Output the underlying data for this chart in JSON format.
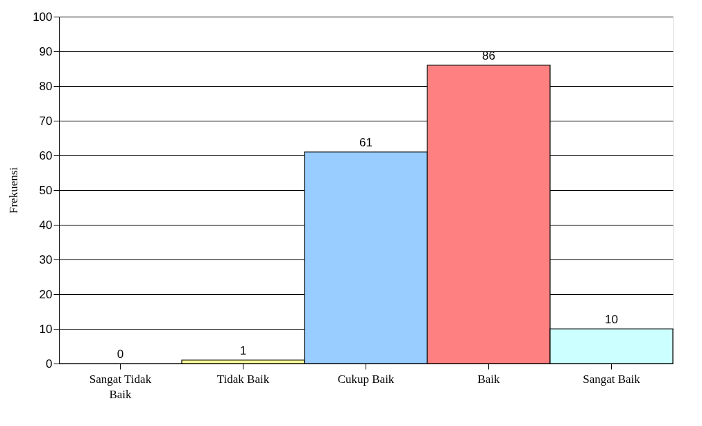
{
  "chart_data": {
    "type": "bar",
    "ylabel": "Frekuensi",
    "categories": [
      "Sangat Tidak Baik",
      "Tidak Baik",
      "Cukup Baik",
      "Baik",
      "Sangat Baik"
    ],
    "values": [
      0,
      1,
      61,
      86,
      10
    ],
    "colors": [
      "#000000",
      "#ffff99",
      "#99ccff",
      "#ff8080",
      "#ccffff"
    ],
    "ylim": [
      0,
      100
    ],
    "yticks": [
      0,
      10,
      20,
      30,
      40,
      50,
      60,
      70,
      80,
      90,
      100
    ],
    "grid": "y",
    "data_labels": true
  }
}
